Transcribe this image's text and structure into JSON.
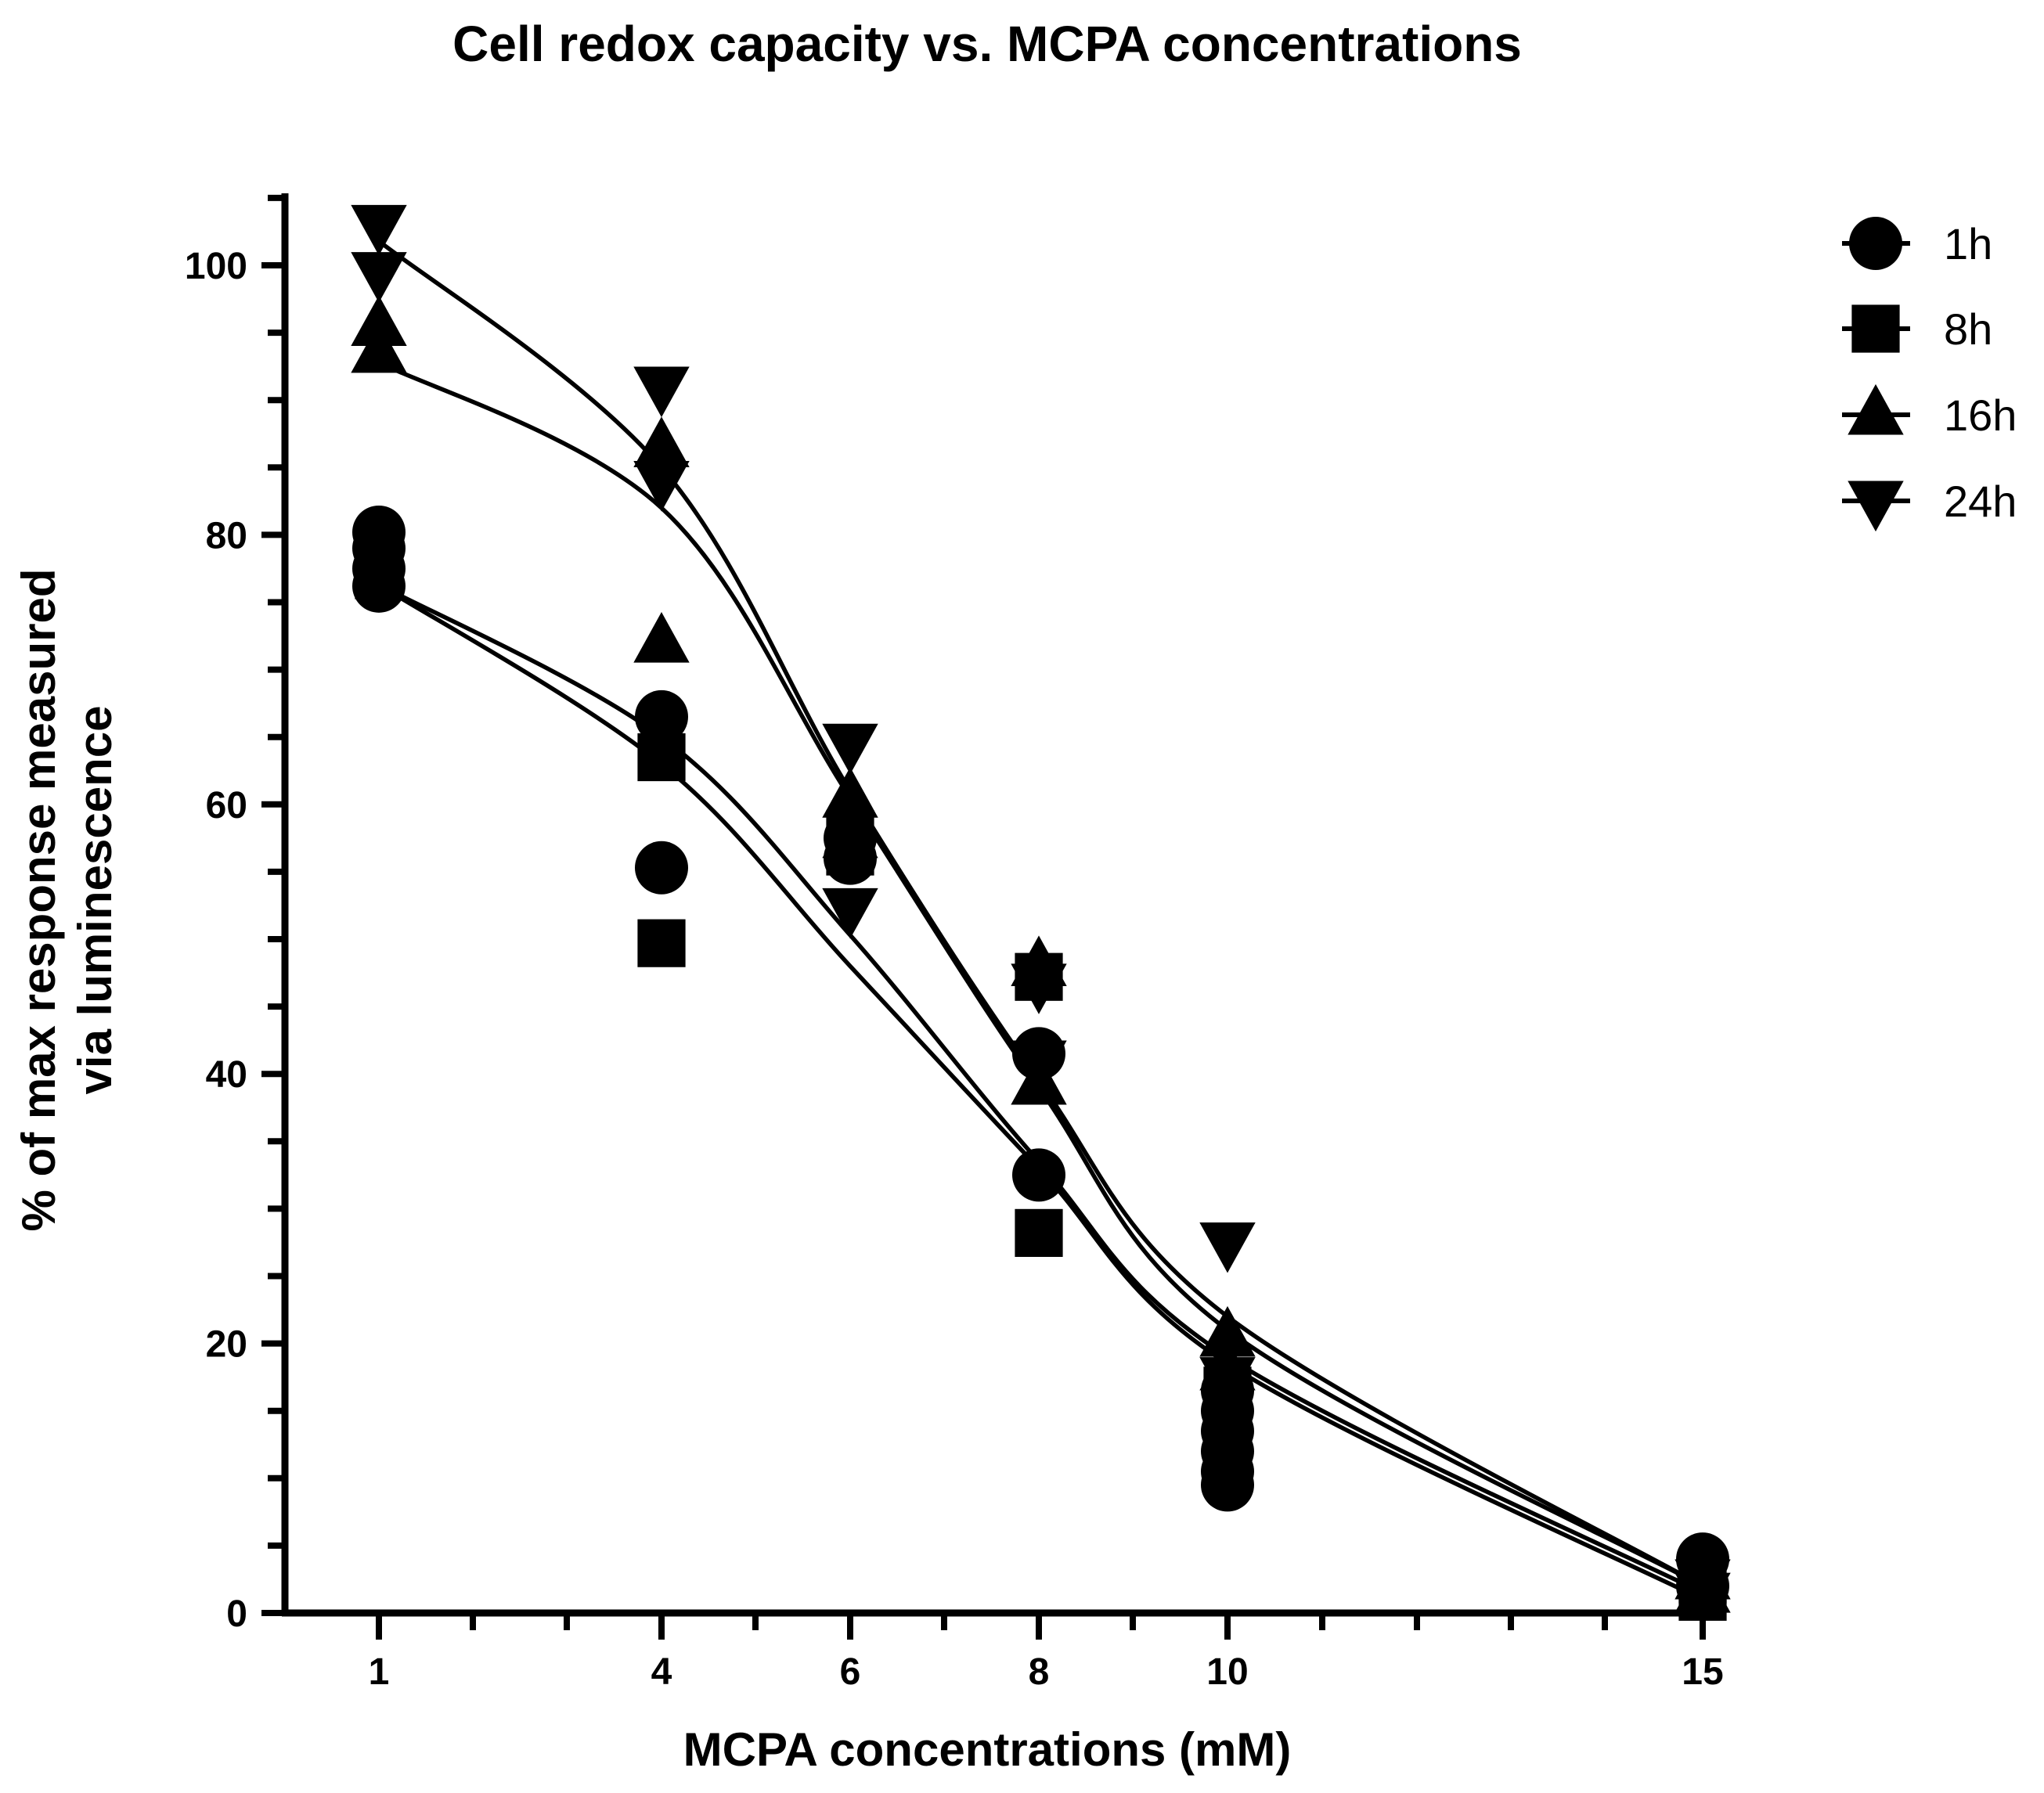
{
  "chart_data": {
    "type": "scatter",
    "title": "Cell redox capacity vs. MCPA concentrations",
    "xlabel": "MCPA concentrations (mM)",
    "ylabel_lines": [
      "% of max response measured",
      "via luminescence"
    ],
    "x_ticks": [
      1,
      4,
      6,
      8,
      10,
      15
    ],
    "x_tick_labels": [
      "1",
      "4",
      "6",
      "8",
      "10",
      "15"
    ],
    "x_tick_positions": [
      1,
      4,
      6,
      8,
      10,
      15
    ],
    "x_scale": "categorical-spaced (1→4 and 10→15 share the same spacing as 2 mM steps)",
    "y_ticks": [
      0,
      20,
      40,
      60,
      80,
      100
    ],
    "y_tick_labels": [
      "0",
      "20",
      "40",
      "60",
      "80",
      "100"
    ],
    "ylim": [
      0,
      105
    ],
    "legend_position": "top-right",
    "series": [
      {
        "name": "1h",
        "marker": "circle",
        "points": [
          {
            "x": 1,
            "y": 80.2
          },
          {
            "x": 1,
            "y": 79
          },
          {
            "x": 1,
            "y": 77.5
          },
          {
            "x": 1,
            "y": 76.2
          },
          {
            "x": 4,
            "y": 66.5
          },
          {
            "x": 4,
            "y": 55.3
          },
          {
            "x": 6,
            "y": 56
          },
          {
            "x": 6,
            "y": 57.5
          },
          {
            "x": 8,
            "y": 41.5
          },
          {
            "x": 8,
            "y": 32.5
          },
          {
            "x": 10,
            "y": 16.5
          },
          {
            "x": 10,
            "y": 15
          },
          {
            "x": 10,
            "y": 13.5
          },
          {
            "x": 10,
            "y": 12
          },
          {
            "x": 10,
            "y": 10.5
          },
          {
            "x": 10,
            "y": 9.5
          },
          {
            "x": 15,
            "y": 4
          },
          {
            "x": 15,
            "y": 2
          }
        ],
        "fit": [
          [
            1,
            76.3
          ],
          [
            4,
            65
          ],
          [
            6,
            50.3
          ],
          [
            8,
            33.5
          ],
          [
            10,
            19
          ],
          [
            15,
            1.5
          ]
        ]
      },
      {
        "name": "8h",
        "marker": "square",
        "points": [
          {
            "x": 1,
            "y": 78.5
          },
          {
            "x": 1,
            "y": 77
          },
          {
            "x": 4,
            "y": 63.5
          },
          {
            "x": 4,
            "y": 49.7
          },
          {
            "x": 6,
            "y": 57.8
          },
          {
            "x": 6,
            "y": 56.5
          },
          {
            "x": 8,
            "y": 47.2
          },
          {
            "x": 8,
            "y": 28.2
          },
          {
            "x": 10,
            "y": 16.5
          },
          {
            "x": 10,
            "y": 14
          },
          {
            "x": 15,
            "y": 2.5
          },
          {
            "x": 15,
            "y": 1.2
          }
        ],
        "fit": [
          [
            1,
            76.3
          ],
          [
            4,
            63
          ],
          [
            6,
            48
          ],
          [
            8,
            33
          ],
          [
            10,
            18.5
          ],
          [
            15,
            1
          ]
        ]
      },
      {
        "name": "16h",
        "marker": "triangle-up",
        "points": [
          {
            "x": 1,
            "y": 95.5
          },
          {
            "x": 1,
            "y": 93.5
          },
          {
            "x": 4,
            "y": 86.5
          },
          {
            "x": 4,
            "y": 72
          },
          {
            "x": 6,
            "y": 60.5
          },
          {
            "x": 6,
            "y": 57.5
          },
          {
            "x": 8,
            "y": 48
          },
          {
            "x": 8,
            "y": 39.2
          },
          {
            "x": 10,
            "y": 20.5
          },
          {
            "x": 10,
            "y": 18
          },
          {
            "x": 15,
            "y": 2.5
          },
          {
            "x": 15,
            "y": 1.5
          }
        ],
        "fit": [
          [
            1,
            92.8
          ],
          [
            4,
            82
          ],
          [
            6,
            60.5
          ],
          [
            8,
            39
          ],
          [
            10,
            21
          ],
          [
            15,
            2
          ]
        ]
      },
      {
        "name": "24h",
        "marker": "triangle-down",
        "points": [
          {
            "x": 1,
            "y": 103
          },
          {
            "x": 1,
            "y": 99.5
          },
          {
            "x": 4,
            "y": 91
          },
          {
            "x": 4,
            "y": 84
          },
          {
            "x": 6,
            "y": 64.5
          },
          {
            "x": 6,
            "y": 52.3
          },
          {
            "x": 8,
            "y": 46.7
          },
          {
            "x": 8,
            "y": 41
          },
          {
            "x": 10,
            "y": 27.5
          },
          {
            "x": 10,
            "y": 17.5
          },
          {
            "x": 15,
            "y": 2.5
          },
          {
            "x": 15,
            "y": 1.5
          }
        ],
        "fit": [
          [
            1,
            101.8
          ],
          [
            4,
            85
          ],
          [
            6,
            61
          ],
          [
            8,
            39.5
          ],
          [
            10,
            22
          ],
          [
            15,
            2
          ]
        ]
      }
    ]
  }
}
